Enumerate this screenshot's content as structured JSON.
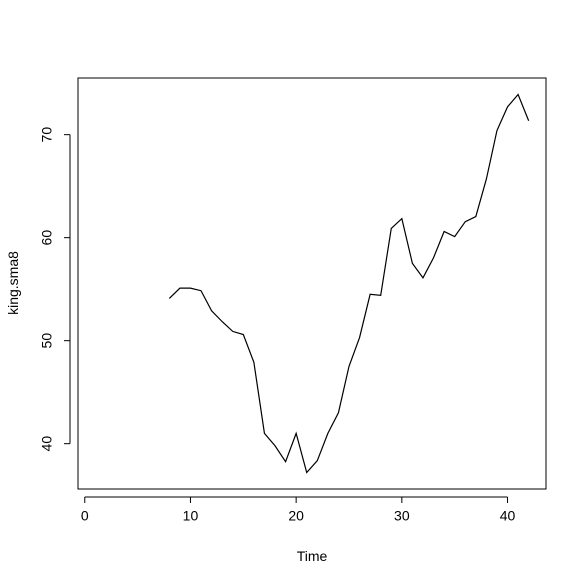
{
  "chart_data": {
    "type": "line",
    "xlabel": "Time",
    "ylabel": "king.sma8",
    "x": [
      1,
      2,
      3,
      4,
      5,
      6,
      7,
      8,
      9,
      10,
      11,
      12,
      13,
      14,
      15,
      16,
      17,
      18,
      19,
      20,
      21,
      22,
      23,
      24,
      25,
      26,
      27,
      28,
      29,
      30,
      31,
      32,
      33,
      34,
      35,
      36,
      37,
      38,
      39,
      40,
      41,
      42
    ],
    "series": [
      {
        "color": "#000000",
        "values": [
          null,
          null,
          null,
          null,
          null,
          null,
          null,
          54.1,
          55.1,
          55.1,
          54.85,
          52.9,
          51.85,
          50.9,
          50.6,
          47.9,
          41.0,
          39.8,
          38.25,
          41.0,
          37.2,
          38.35,
          41.0,
          43.0,
          47.5,
          50.3,
          54.5,
          54.4,
          60.9,
          61.85,
          57.5,
          56.1,
          58.05,
          60.6,
          60.1,
          61.55,
          62.05,
          65.7,
          70.4,
          72.7,
          73.9,
          71.35
        ]
      }
    ],
    "xlim": [
      -0.64,
      43.64
    ],
    "xticks": [
      0,
      10,
      20,
      30,
      40
    ],
    "ylim": [
      35.6,
      75.5
    ],
    "yticks": [
      40,
      50,
      60,
      70
    ]
  }
}
